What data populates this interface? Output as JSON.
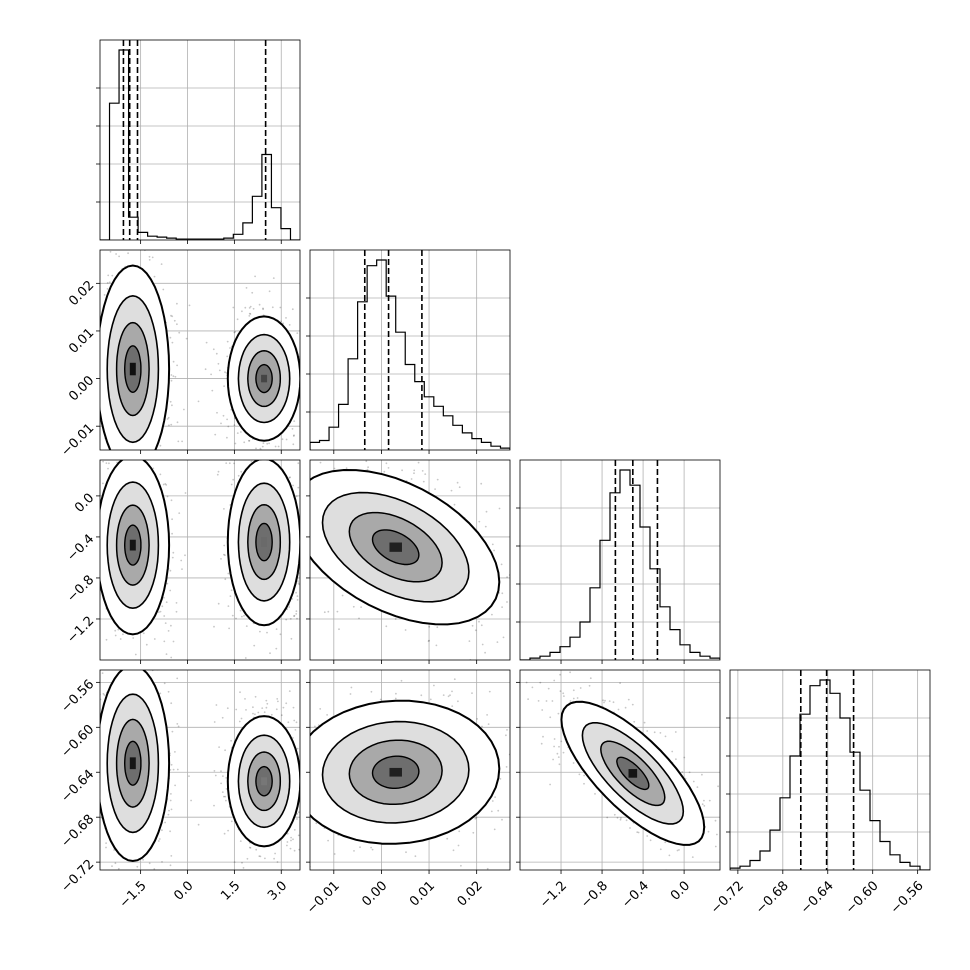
{
  "chart_data": {
    "type": "corner",
    "grid": true,
    "colors": {
      "line": "#000000",
      "grid": "#b0b0b0",
      "background": "#ffffff"
    },
    "parameters": [
      {
        "range": [
          -2.8,
          3.6
        ],
        "ticks": [
          -1.5,
          0.0,
          1.5,
          3.0
        ],
        "tick_labels": [
          "−1.5",
          "0.0",
          "1.5",
          "3.0"
        ],
        "quantiles": [
          -2.05,
          -1.85,
          -1.6,
          2.5
        ],
        "histogram": [
          0,
          0.72,
          1.0,
          0.12,
          0.04,
          0.02,
          0.015,
          0.01,
          0.005,
          0.005,
          0.005,
          0.005,
          0.005,
          0.01,
          0.03,
          0.09,
          0.23,
          0.45,
          0.17,
          0.06,
          0.0
        ]
      },
      {
        "range": [
          -0.015,
          0.027
        ],
        "ticks": [
          -0.01,
          0.0,
          0.01,
          0.02
        ],
        "tick_labels": [
          "−0.01",
          "0.00",
          "0.01",
          "0.02"
        ],
        "quantiles": [
          -0.0035,
          0.0015,
          0.0085
        ],
        "histogram": [
          0.04,
          0.05,
          0.12,
          0.24,
          0.48,
          0.78,
          0.97,
          1.0,
          0.81,
          0.62,
          0.45,
          0.36,
          0.28,
          0.23,
          0.18,
          0.13,
          0.09,
          0.06,
          0.04,
          0.02,
          0.01
        ]
      },
      {
        "range": [
          -1.6,
          0.35
        ],
        "ticks": [
          -1.2,
          -0.8,
          -0.4,
          0.0
        ],
        "tick_labels": [
          "−1.2",
          "−0.8",
          "−0.4",
          "0.0"
        ],
        "quantiles": [
          -0.67,
          -0.5,
          -0.26
        ],
        "histogram": [
          0.0,
          0.01,
          0.02,
          0.04,
          0.07,
          0.12,
          0.2,
          0.38,
          0.63,
          0.88,
          1.0,
          0.92,
          0.7,
          0.48,
          0.28,
          0.16,
          0.08,
          0.04,
          0.02,
          0.01
        ]
      },
      {
        "range": [
          -0.727,
          -0.549
        ],
        "ticks": [
          -0.72,
          -0.68,
          -0.64,
          -0.6,
          -0.56
        ],
        "tick_labels": [
          "−0.72",
          "−0.68",
          "−0.64",
          "−0.60",
          "−0.56"
        ],
        "quantiles": [
          -0.664,
          -0.641,
          -0.617
        ],
        "histogram": [
          0.01,
          0.02,
          0.05,
          0.1,
          0.21,
          0.38,
          0.6,
          0.82,
          0.97,
          1.0,
          0.93,
          0.8,
          0.62,
          0.42,
          0.26,
          0.15,
          0.08,
          0.04,
          0.02,
          0.0
        ]
      }
    ],
    "contour_panels": [
      {
        "x_param": 0,
        "y_param": 1,
        "modes": [
          {
            "cx": -1.75,
            "cy": 0.002,
            "sx": 0.4,
            "sy": 0.0075,
            "rho": 0.0,
            "peak": "#101010"
          },
          {
            "cx": 2.45,
            "cy": 0.0,
            "sx": 0.4,
            "sy": 0.0045,
            "rho": 0.0,
            "peak": "#454545"
          }
        ]
      },
      {
        "x_param": 0,
        "y_param": 2,
        "modes": [
          {
            "cx": -1.75,
            "cy": -0.48,
            "sx": 0.4,
            "sy": 0.3,
            "rho": 0.0,
            "peak": "#151515"
          },
          {
            "cx": 2.45,
            "cy": -0.45,
            "sx": 0.4,
            "sy": 0.28,
            "rho": 0.0,
            "peak": "#6a6a6a"
          }
        ]
      },
      {
        "x_param": 0,
        "y_param": 3,
        "modes": [
          {
            "cx": -1.75,
            "cy": -0.632,
            "sx": 0.4,
            "sy": 0.03,
            "rho": 0.0,
            "peak": "#151515"
          },
          {
            "cx": 2.45,
            "cy": -0.648,
            "sx": 0.4,
            "sy": 0.02,
            "rho": 0.0,
            "peak": "#777777"
          }
        ]
      },
      {
        "x_param": 1,
        "y_param": 2,
        "modes": [
          {
            "cx": 0.003,
            "cy": -0.5,
            "sx": 0.0075,
            "sy": 0.26,
            "rho": -0.45,
            "peak": "#202020"
          }
        ]
      },
      {
        "x_param": 1,
        "y_param": 3,
        "modes": [
          {
            "cx": 0.003,
            "cy": -0.64,
            "sx": 0.0075,
            "sy": 0.022,
            "rho": 0.05,
            "peak": "#202020"
          }
        ]
      },
      {
        "x_param": 2,
        "y_param": 3,
        "modes": [
          {
            "cx": -0.5,
            "cy": -0.641,
            "sx": 0.24,
            "sy": 0.022,
            "rho": -0.75,
            "peak": "#151515"
          }
        ]
      }
    ]
  }
}
